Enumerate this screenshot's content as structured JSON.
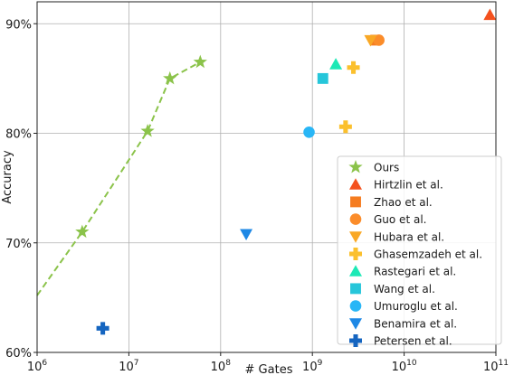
{
  "chart_data": {
    "type": "scatter",
    "xlabel": "# Gates",
    "ylabel": "Accuracy",
    "xscale": "log",
    "xlim": [
      1000000,
      100000000000
    ],
    "ylim": [
      60,
      92
    ],
    "grid": true,
    "legend_position": "bottom-right",
    "x_ticks": [
      {
        "value": 1000000,
        "base": "10",
        "exp": "6"
      },
      {
        "value": 10000000,
        "base": "10",
        "exp": "7"
      },
      {
        "value": 100000000,
        "base": "10",
        "exp": "8"
      },
      {
        "value": 1000000000,
        "base": "10",
        "exp": "9"
      },
      {
        "value": 10000000000,
        "base": "10",
        "exp": "10"
      },
      {
        "value": 100000000000,
        "base": "10",
        "exp": "11"
      }
    ],
    "y_ticks": [
      {
        "value": 60,
        "label": "60%"
      },
      {
        "value": 70,
        "label": "70%"
      },
      {
        "value": 80,
        "label": "80%"
      },
      {
        "value": 90,
        "label": "90%"
      }
    ],
    "series": [
      {
        "name": "Ours",
        "marker": "star",
        "color": "#8bc34a",
        "line": "dashed",
        "points": [
          [
            3100000,
            71.0
          ],
          [
            16000000,
            80.2
          ],
          [
            28000000,
            85.0
          ],
          [
            60000000,
            86.5
          ]
        ],
        "extrapolation": [
          [
            1000000,
            65.2
          ],
          [
            3100000,
            71.0
          ]
        ]
      },
      {
        "name": "Hirtzlin et al.",
        "marker": "triangle-up",
        "color": "#f4511e",
        "points": [
          [
            86000000000,
            90.8
          ]
        ]
      },
      {
        "name": "Zhao et al.",
        "marker": "square",
        "color": "#f57c20",
        "points": [
          [
            4900000000,
            88.5
          ]
        ]
      },
      {
        "name": "Guo et al.",
        "marker": "circle",
        "color": "#fb8c2a",
        "points": [
          [
            5300000000,
            88.5
          ]
        ]
      },
      {
        "name": "Hubara et al.",
        "marker": "triangle-down",
        "color": "#f9a825",
        "points": [
          [
            4300000000,
            88.5
          ]
        ]
      },
      {
        "name": "Ghasemzadeh et al.",
        "marker": "plus",
        "color": "#fbc02d",
        "points": [
          [
            2800000000,
            86.0
          ],
          [
            2300000000,
            80.6
          ]
        ]
      },
      {
        "name": "Rastegari et al.",
        "marker": "triangle-up",
        "color": "#1de9b6",
        "points": [
          [
            1800000000,
            86.3
          ]
        ]
      },
      {
        "name": "Wang et al.",
        "marker": "square",
        "color": "#26c6da",
        "points": [
          [
            1300000000,
            85.0
          ]
        ]
      },
      {
        "name": "Umuroglu et al.",
        "marker": "circle",
        "color": "#29b6f6",
        "points": [
          [
            920000000,
            80.1
          ]
        ]
      },
      {
        "name": "Benamira et al.",
        "marker": "triangle-down",
        "color": "#1e88e5",
        "points": [
          [
            190000000,
            70.8
          ]
        ]
      },
      {
        "name": "Petersen et al.",
        "marker": "plus",
        "color": "#1565c0",
        "points": [
          [
            5200000,
            62.2
          ]
        ]
      }
    ]
  }
}
